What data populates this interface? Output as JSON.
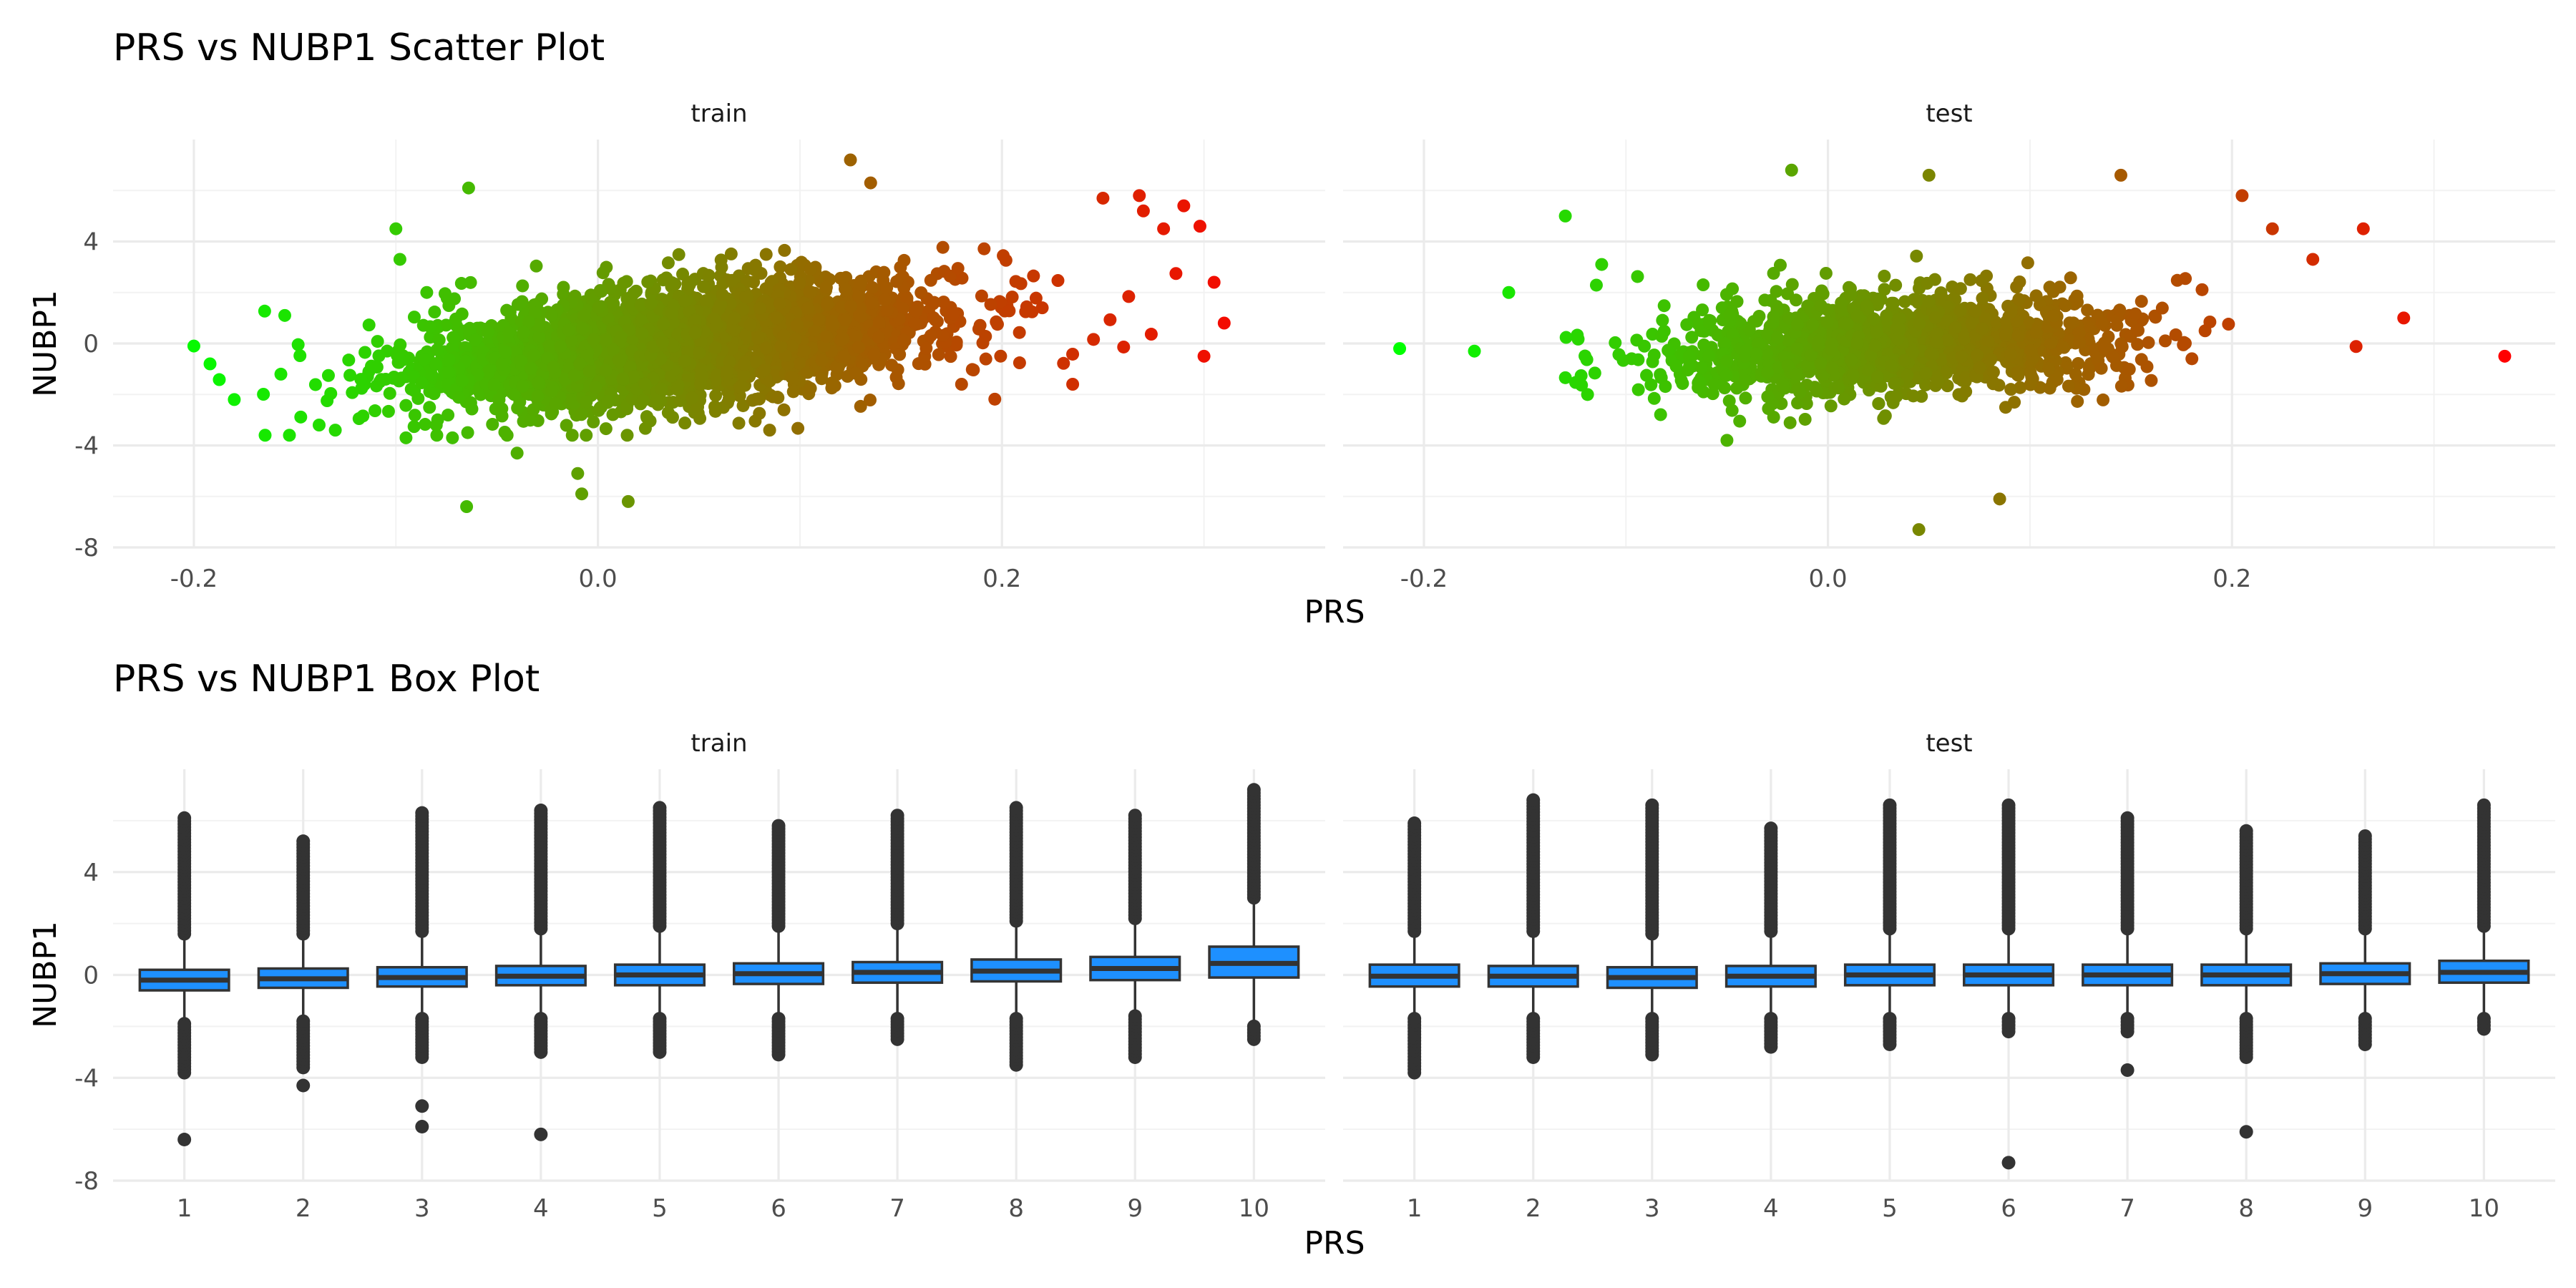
{
  "chart_data": [
    {
      "type": "scatter",
      "title": "PRS vs NUBP1 Scatter Plot",
      "xlabel": "PRS",
      "ylabel": "NUBP1",
      "ylim": [
        -8,
        8
      ],
      "y_ticks": [
        4,
        0,
        -4,
        -8
      ],
      "grid": true,
      "color_scale": {
        "low": "#00ff00",
        "high": "#ff0000",
        "mapped_to": "PRS"
      },
      "panels": [
        {
          "name": "train",
          "xlim": [
            -0.24,
            0.36
          ],
          "x_ticks": [
            -0.2,
            0.0,
            0.2
          ],
          "cloud": {
            "n": 3000,
            "x_mean": 0.04,
            "x_sd": 0.065,
            "x_range": [
              -0.2,
              0.31
            ],
            "slope": 8,
            "y_sd": 1.1
          },
          "points": [
            {
              "x": -0.2,
              "y": -0.1
            },
            {
              "x": -0.192,
              "y": -0.8
            },
            {
              "x": -0.18,
              "y": -2.2
            },
            {
              "x": -0.155,
              "y": 1.1
            },
            {
              "x": -0.138,
              "y": -3.2
            },
            {
              "x": -0.13,
              "y": -3.4
            },
            {
              "x": -0.1,
              "y": 4.5
            },
            {
              "x": -0.098,
              "y": 3.3
            },
            {
              "x": -0.095,
              "y": -3.7
            },
            {
              "x": -0.08,
              "y": -3.2
            },
            {
              "x": -0.072,
              "y": -3.7
            },
            {
              "x": -0.064,
              "y": 6.1
            },
            {
              "x": -0.065,
              "y": -6.4
            },
            {
              "x": -0.04,
              "y": -4.3
            },
            {
              "x": -0.01,
              "y": -5.1
            },
            {
              "x": -0.008,
              "y": -5.9
            },
            {
              "x": 0.015,
              "y": -6.2
            },
            {
              "x": 0.085,
              "y": -3.4
            },
            {
              "x": 0.125,
              "y": 7.2
            },
            {
              "x": 0.135,
              "y": 6.3
            },
            {
              "x": 0.18,
              "y": -1.6
            },
            {
              "x": 0.235,
              "y": -1.6
            },
            {
              "x": 0.25,
              "y": 5.7
            },
            {
              "x": 0.268,
              "y": 5.8
            },
            {
              "x": 0.27,
              "y": 5.2
            },
            {
              "x": 0.28,
              "y": 4.5
            },
            {
              "x": 0.29,
              "y": 5.4
            },
            {
              "x": 0.298,
              "y": 4.6
            },
            {
              "x": 0.3,
              "y": -0.5
            },
            {
              "x": 0.305,
              "y": 2.4
            },
            {
              "x": 0.31,
              "y": 0.8
            }
          ]
        },
        {
          "name": "test",
          "xlim": [
            -0.24,
            0.36
          ],
          "x_ticks": [
            -0.2,
            0.0,
            0.2
          ],
          "cloud": {
            "n": 1400,
            "x_mean": 0.035,
            "x_sd": 0.06,
            "x_range": [
              -0.18,
              0.27
            ],
            "slope": 3,
            "y_sd": 1.0
          },
          "points": [
            {
              "x": -0.212,
              "y": -0.2
            },
            {
              "x": -0.175,
              "y": -0.3
            },
            {
              "x": -0.158,
              "y": 2.0
            },
            {
              "x": -0.13,
              "y": 5.0
            },
            {
              "x": -0.112,
              "y": 3.1
            },
            {
              "x": -0.05,
              "y": -3.8
            },
            {
              "x": -0.018,
              "y": 6.8
            },
            {
              "x": 0.045,
              "y": -7.3
            },
            {
              "x": 0.05,
              "y": 6.6
            },
            {
              "x": 0.085,
              "y": -6.1
            },
            {
              "x": 0.145,
              "y": 6.6
            },
            {
              "x": 0.205,
              "y": 5.8
            },
            {
              "x": 0.22,
              "y": 4.5
            },
            {
              "x": 0.24,
              "y": 3.3
            },
            {
              "x": 0.265,
              "y": 4.5
            },
            {
              "x": 0.285,
              "y": 1.0
            },
            {
              "x": 0.335,
              "y": -0.5
            }
          ]
        }
      ]
    },
    {
      "type": "box",
      "title": "PRS vs NUBP1 Box Plot",
      "xlabel": "PRS",
      "ylabel": "NUBP1",
      "ylim": [
        -8,
        8
      ],
      "y_ticks": [
        4,
        0,
        -4,
        -8
      ],
      "categories": [
        "1",
        "2",
        "3",
        "4",
        "5",
        "6",
        "7",
        "8",
        "9",
        "10"
      ],
      "box_fill": "#1e90ff",
      "panels": [
        {
          "name": "train",
          "boxes": [
            {
              "q1": -0.6,
              "median": -0.2,
              "q3": 0.2,
              "whisker_low": -1.8,
              "whisker_high": 1.5,
              "outliers_high": [
                1.6,
                6.1
              ],
              "outliers_low": [
                -1.9,
                -3.8
              ],
              "extra_outliers": [
                -6.4
              ]
            },
            {
              "q1": -0.5,
              "median": -0.15,
              "q3": 0.25,
              "whisker_low": -1.7,
              "whisker_high": 1.5,
              "outliers_high": [
                1.6,
                5.2
              ],
              "outliers_low": [
                -1.8,
                -3.6
              ],
              "extra_outliers": [
                -4.3
              ]
            },
            {
              "q1": -0.45,
              "median": -0.1,
              "q3": 0.3,
              "whisker_low": -1.6,
              "whisker_high": 1.6,
              "outliers_high": [
                1.7,
                6.3
              ],
              "outliers_low": [
                -1.7,
                -3.2
              ],
              "extra_outliers": [
                -5.1,
                -5.9
              ]
            },
            {
              "q1": -0.4,
              "median": -0.05,
              "q3": 0.35,
              "whisker_low": -1.6,
              "whisker_high": 1.7,
              "outliers_high": [
                1.8,
                6.4
              ],
              "outliers_low": [
                -1.7,
                -3.0
              ],
              "extra_outliers": [
                -6.2
              ]
            },
            {
              "q1": -0.4,
              "median": 0.0,
              "q3": 0.4,
              "whisker_low": -1.6,
              "whisker_high": 1.8,
              "outliers_high": [
                1.9,
                6.5
              ],
              "outliers_low": [
                -1.7,
                -3.0
              ],
              "extra_outliers": []
            },
            {
              "q1": -0.35,
              "median": 0.05,
              "q3": 0.45,
              "whisker_low": -1.6,
              "whisker_high": 1.8,
              "outliers_high": [
                1.9,
                5.8
              ],
              "outliers_low": [
                -1.7,
                -3.1
              ],
              "extra_outliers": []
            },
            {
              "q1": -0.3,
              "median": 0.1,
              "q3": 0.5,
              "whisker_low": -1.6,
              "whisker_high": 1.9,
              "outliers_high": [
                2.0,
                6.2
              ],
              "outliers_low": [
                -1.7,
                -2.5
              ],
              "extra_outliers": []
            },
            {
              "q1": -0.25,
              "median": 0.15,
              "q3": 0.6,
              "whisker_low": -1.6,
              "whisker_high": 2.0,
              "outliers_high": [
                2.1,
                6.5
              ],
              "outliers_low": [
                -1.7,
                -3.5
              ],
              "extra_outliers": []
            },
            {
              "q1": -0.2,
              "median": 0.25,
              "q3": 0.7,
              "whisker_low": -1.5,
              "whisker_high": 2.1,
              "outliers_high": [
                2.2,
                6.2
              ],
              "outliers_low": [
                -1.6,
                -3.2
              ],
              "extra_outliers": []
            },
            {
              "q1": -0.1,
              "median": 0.45,
              "q3": 1.1,
              "whisker_low": -1.9,
              "whisker_high": 2.9,
              "outliers_high": [
                3.0,
                7.2
              ],
              "outliers_low": [
                -2.0,
                -2.5
              ],
              "extra_outliers": []
            }
          ]
        },
        {
          "name": "test",
          "boxes": [
            {
              "q1": -0.45,
              "median": -0.05,
              "q3": 0.4,
              "whisker_low": -1.6,
              "whisker_high": 1.6,
              "outliers_high": [
                1.7,
                5.9
              ],
              "outliers_low": [
                -1.7,
                -3.8
              ],
              "extra_outliers": []
            },
            {
              "q1": -0.45,
              "median": -0.05,
              "q3": 0.35,
              "whisker_low": -1.6,
              "whisker_high": 1.6,
              "outliers_high": [
                1.7,
                6.8
              ],
              "outliers_low": [
                -1.7,
                -3.2
              ],
              "extra_outliers": []
            },
            {
              "q1": -0.5,
              "median": -0.1,
              "q3": 0.3,
              "whisker_low": -1.6,
              "whisker_high": 1.5,
              "outliers_high": [
                1.6,
                6.6
              ],
              "outliers_low": [
                -1.7,
                -3.1
              ],
              "extra_outliers": []
            },
            {
              "q1": -0.45,
              "median": -0.05,
              "q3": 0.35,
              "whisker_low": -1.6,
              "whisker_high": 1.6,
              "outliers_high": [
                1.7,
                5.7
              ],
              "outliers_low": [
                -1.7,
                -2.8
              ],
              "extra_outliers": []
            },
            {
              "q1": -0.4,
              "median": 0.0,
              "q3": 0.4,
              "whisker_low": -1.6,
              "whisker_high": 1.7,
              "outliers_high": [
                1.8,
                6.6
              ],
              "outliers_low": [
                -1.7,
                -2.7
              ],
              "extra_outliers": []
            },
            {
              "q1": -0.4,
              "median": 0.0,
              "q3": 0.4,
              "whisker_low": -1.6,
              "whisker_high": 1.7,
              "outliers_high": [
                1.8,
                6.6
              ],
              "outliers_low": [
                -1.7,
                -2.2
              ],
              "extra_outliers": [
                -7.3
              ]
            },
            {
              "q1": -0.4,
              "median": 0.0,
              "q3": 0.4,
              "whisker_low": -1.6,
              "whisker_high": 1.7,
              "outliers_high": [
                1.8,
                6.1
              ],
              "outliers_low": [
                -1.7,
                -2.2
              ],
              "extra_outliers": [
                -3.7
              ]
            },
            {
              "q1": -0.4,
              "median": 0.0,
              "q3": 0.4,
              "whisker_low": -1.6,
              "whisker_high": 1.7,
              "outliers_high": [
                1.8,
                5.6
              ],
              "outliers_low": [
                -1.7,
                -3.2
              ],
              "extra_outliers": [
                -6.1
              ]
            },
            {
              "q1": -0.35,
              "median": 0.05,
              "q3": 0.45,
              "whisker_low": -1.6,
              "whisker_high": 1.7,
              "outliers_high": [
                1.8,
                5.4
              ],
              "outliers_low": [
                -1.7,
                -2.7
              ],
              "extra_outliers": []
            },
            {
              "q1": -0.3,
              "median": 0.1,
              "q3": 0.55,
              "whisker_low": -1.6,
              "whisker_high": 1.8,
              "outliers_high": [
                1.9,
                6.6
              ],
              "outliers_low": [
                -1.7,
                -2.1
              ],
              "extra_outliers": []
            }
          ]
        }
      ]
    }
  ]
}
